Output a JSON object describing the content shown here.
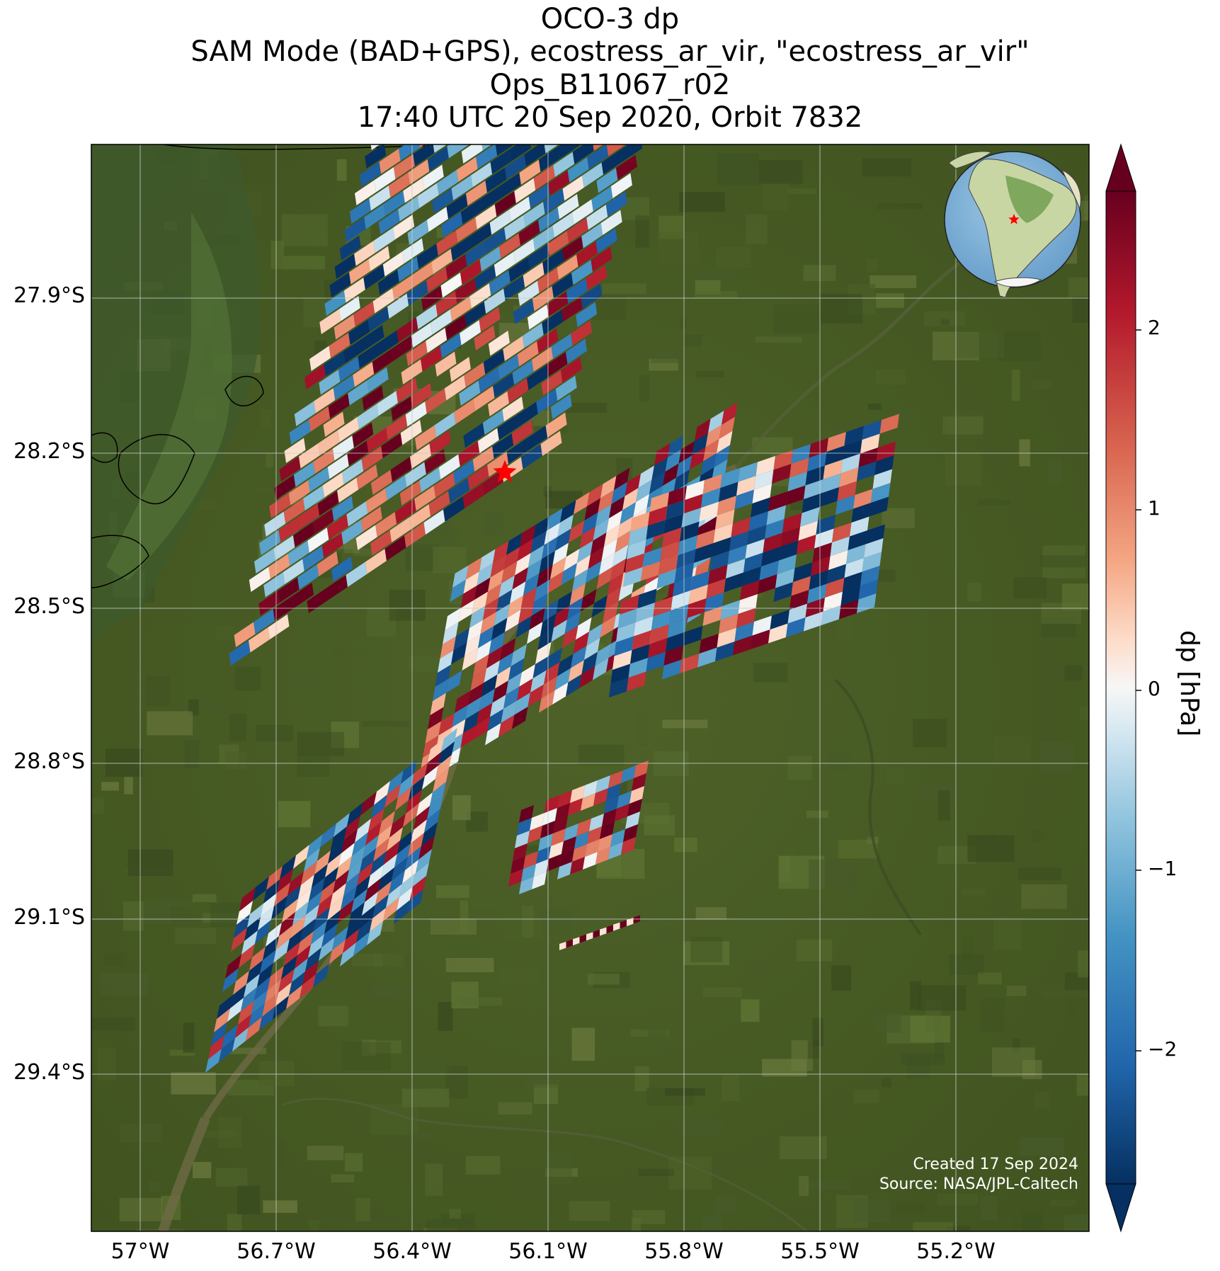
{
  "title": {
    "line1": "OCO-3 dp",
    "line2": "SAM Mode (BAD+GPS), ecostress_ar_vir, \"ecostress_ar_vir\"",
    "line3": "Ops_B11067_r02",
    "line4": "17:40 UTC 20 Sep 2020, Orbit 7832"
  },
  "map": {
    "lat_ticks": [
      "27.9°S",
      "28.2°S",
      "28.5°S",
      "28.8°S",
      "29.1°S",
      "29.4°S"
    ],
    "lon_ticks": [
      "57°W",
      "56.7°W",
      "56.4°W",
      "56.1°W",
      "55.8°W",
      "55.5°W",
      "55.2°W"
    ],
    "target_marker": "red-star",
    "inset_globe": "south-america-globe-with-target-star"
  },
  "colorbar": {
    "label": "dp [hPa]",
    "ticks": [
      "2",
      "1",
      "0",
      "−1",
      "−2"
    ],
    "colormap": "RdBu_r",
    "range": [
      -2.7,
      2.7
    ],
    "extend": "both"
  },
  "credits": {
    "created": "Created 17 Sep 2024",
    "source": "Source: NASA/JPL-Caltech"
  },
  "colors": {
    "vegetation": "#4a5d26",
    "river": "#6e6a45",
    "high": "#67001f",
    "low": "#053061",
    "target": "#ff0000"
  }
}
